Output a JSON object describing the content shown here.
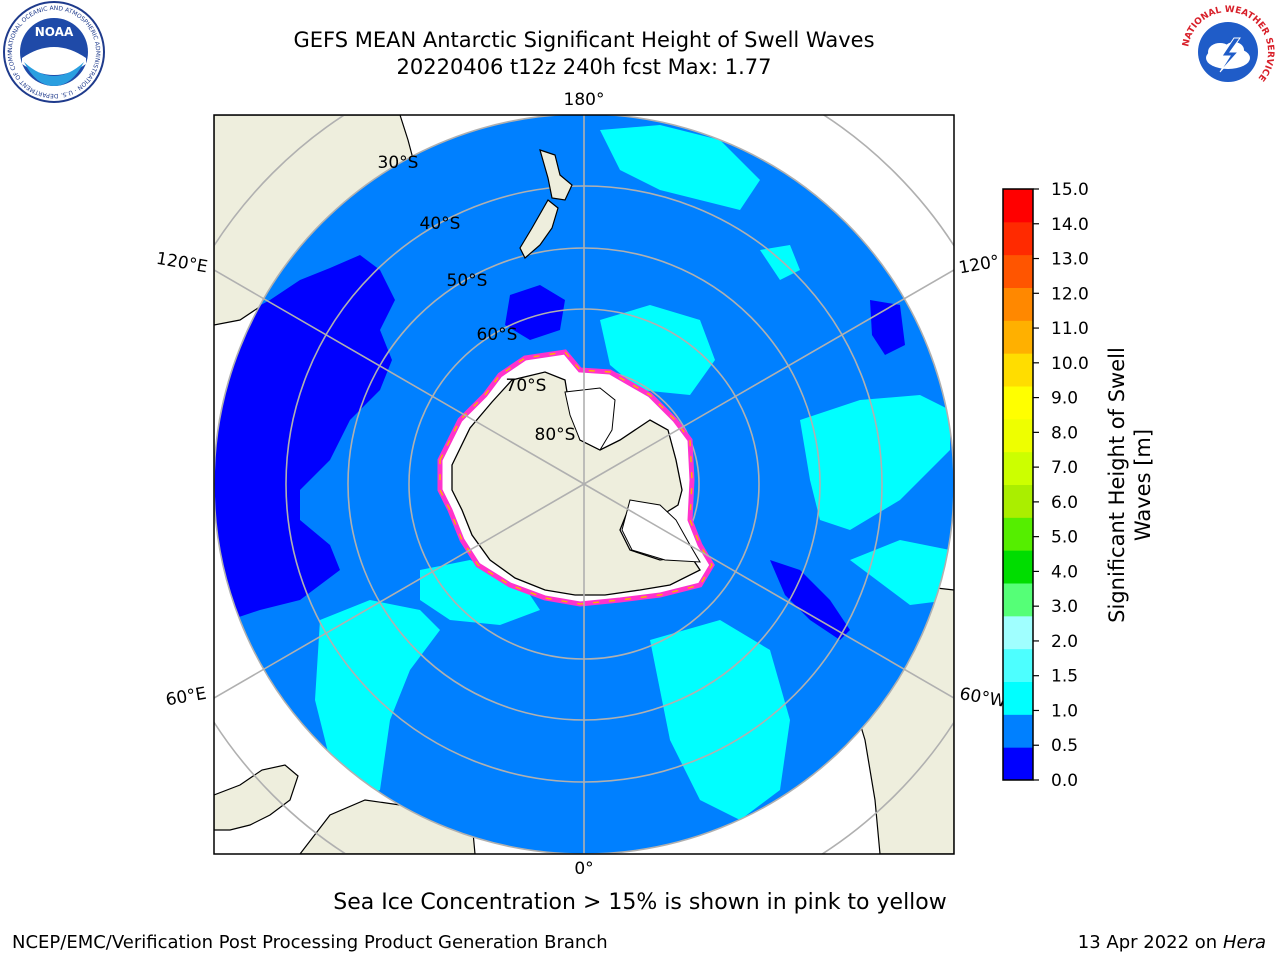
{
  "header": {
    "title_line1": "GEFS MEAN Antarctic Significant Height of Swell Waves",
    "title_line2": "20220406 t12z 240h fcst   Max: 1.77"
  },
  "map": {
    "projection": "south polar stereographic",
    "longitude_labels": {
      "top": "180°",
      "bottom": "0°",
      "upper_left": "120°E",
      "upper_right": "120°",
      "lower_left": "60°E",
      "lower_right": "60°W"
    },
    "latitude_labels": [
      "30°S",
      "40°S",
      "50°S",
      "60°S",
      "70°S",
      "80°S"
    ],
    "colors": {
      "ocean_base": "#0080ff",
      "swell_low": "#0000ff",
      "swell_mid": "#00ffff",
      "land": "#eeeedd",
      "antarctic_land": "#eeeedd",
      "ice_edge": [
        "#ff33cc",
        "#ffb000",
        "#ffff00"
      ],
      "gridline": "#b0b0b0"
    },
    "note": "Sea Ice Concentration > 15% is shown in pink to yellow"
  },
  "colorbar": {
    "label": "Significant Height of Swell Waves [m]",
    "label_line1": "Significant Height of Swell",
    "label_line2": "Waves [m]",
    "ticks": [
      "0.0",
      "0.5",
      "1.0",
      "1.5",
      "2.0",
      "3.0",
      "4.0",
      "5.0",
      "6.0",
      "7.0",
      "8.0",
      "9.0",
      "10.0",
      "11.0",
      "12.0",
      "13.0",
      "14.0",
      "15.0"
    ],
    "colors": [
      "#0000ff",
      "#0080ff",
      "#00ffff",
      "#4dffff",
      "#a0ffff",
      "#55ff77",
      "#00dd00",
      "#55ee00",
      "#aaee00",
      "#ccff00",
      "#eeff00",
      "#ffff00",
      "#ffdd00",
      "#ffb000",
      "#ff8800",
      "#ff5500",
      "#ff2a00",
      "#ff0000"
    ]
  },
  "footer": {
    "left": "NCEP/EMC/Verification Post Processing Product Generation Branch",
    "right_date": "13 Apr 2022 on ",
    "right_host": "Hera"
  },
  "logos": {
    "left": "NOAA",
    "left_ring": "NATIONAL OCEANIC AND ATMOSPHERIC ADMINISTRATION · U.S. DEPARTMENT OF COMMERCE",
    "right_ring": "NATIONAL WEATHER SERVICE"
  }
}
